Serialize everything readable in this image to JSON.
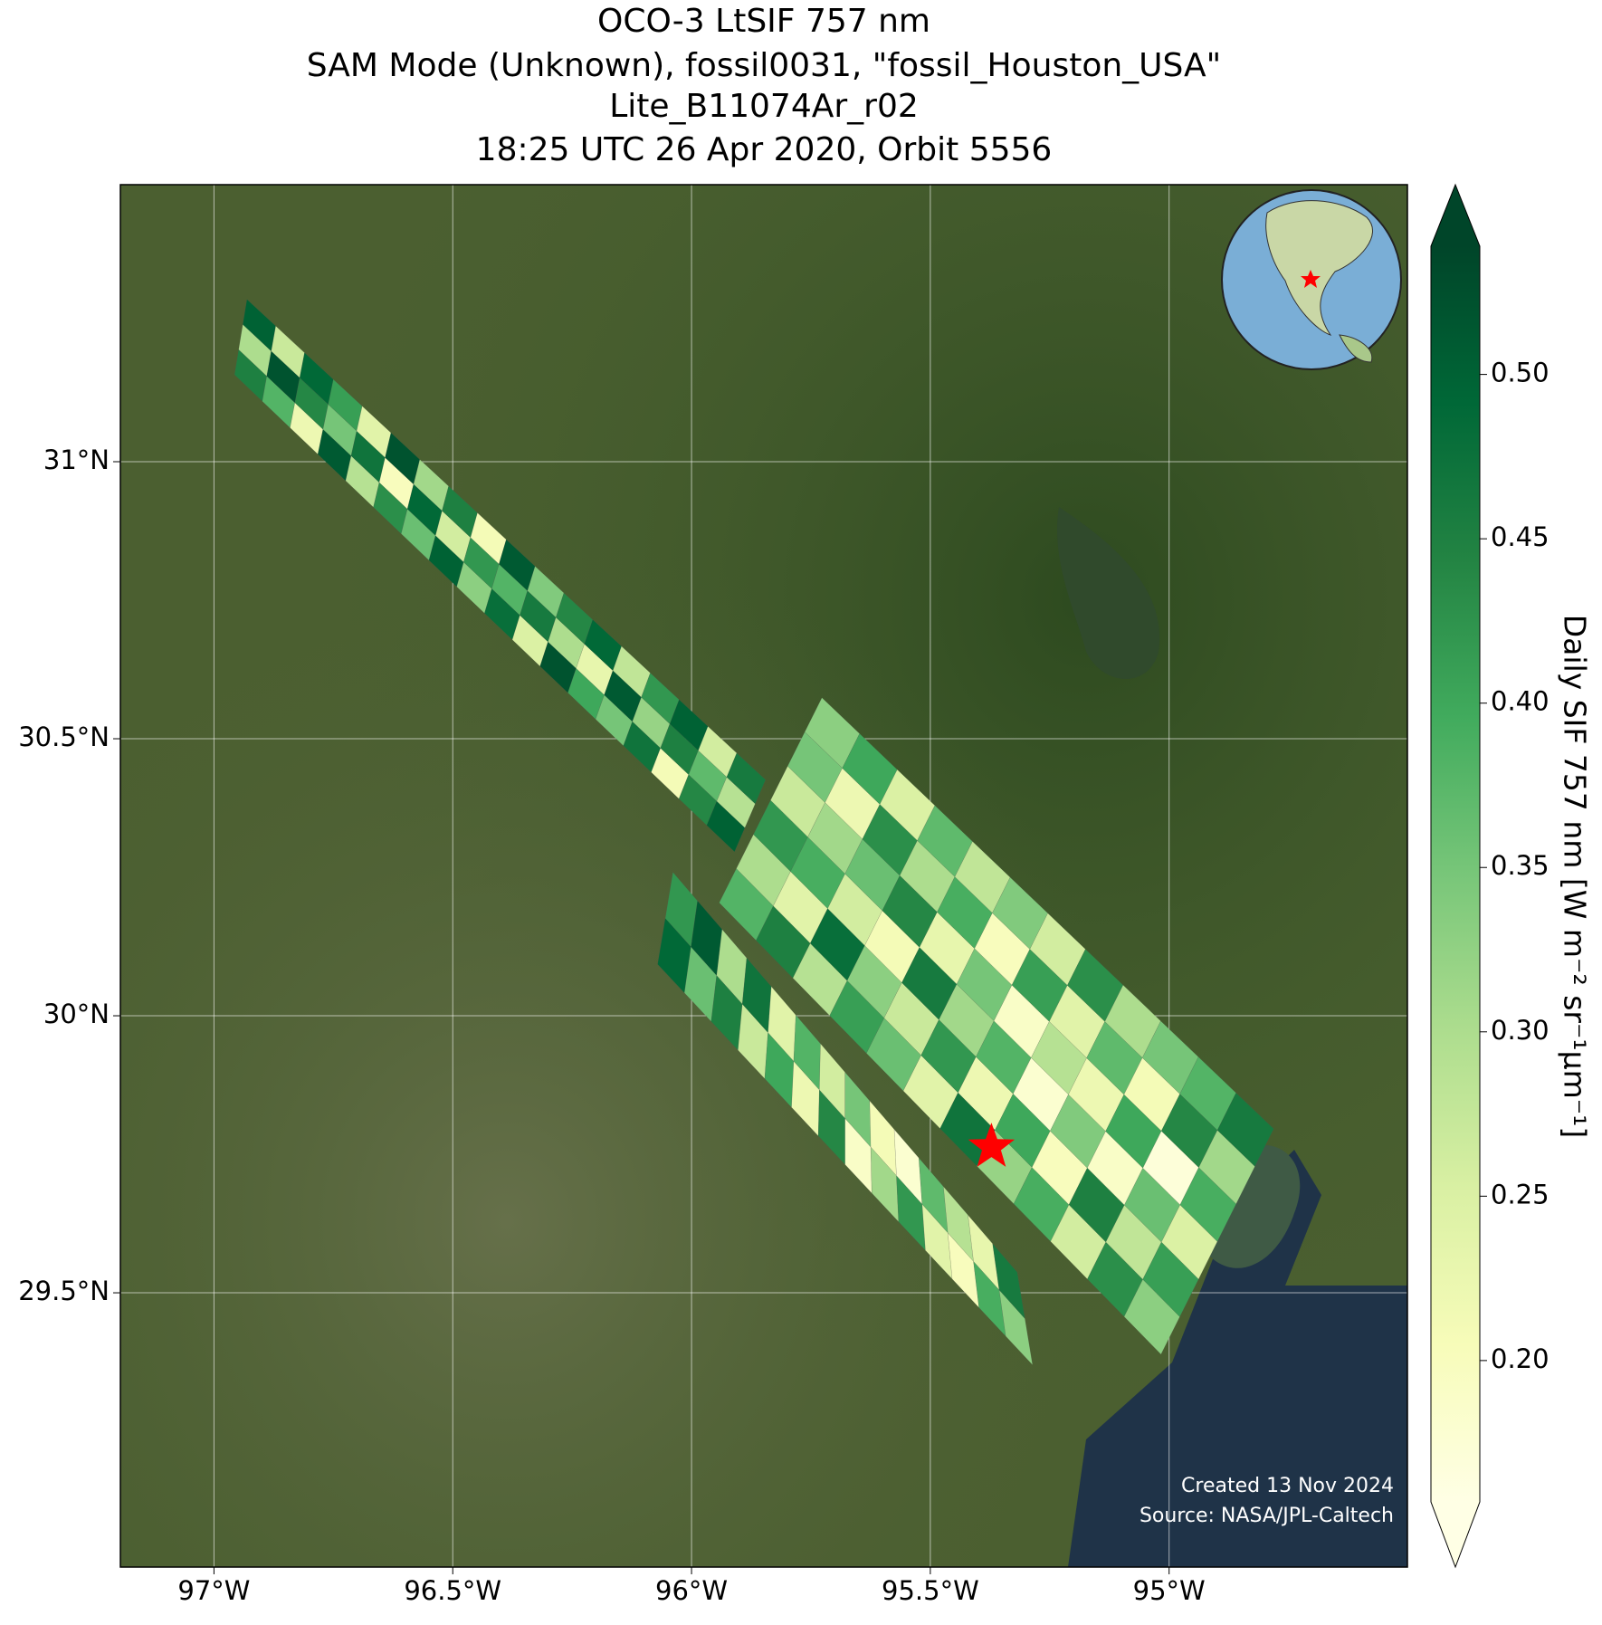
{
  "chart_data": {
    "type": "swath-map",
    "title": [
      "OCO-3 LtSIF 757 nm",
      "SAM Mode (Unknown), fossil0031, \"fossil_Houston_USA\"",
      "Lite_B11074Ar_r02",
      "18:25 UTC 26 Apr 2020, Orbit 5556"
    ],
    "xlim": [
      -97.196,
      -94.501
    ],
    "ylim": [
      29.005,
      31.5
    ],
    "xticks": [
      {
        "value": -97,
        "label": "97°W"
      },
      {
        "value": -96.5,
        "label": "96.5°W"
      },
      {
        "value": -96,
        "label": "96°W"
      },
      {
        "value": -95.5,
        "label": "95.5°W"
      },
      {
        "value": -95,
        "label": "95°W"
      }
    ],
    "yticks": [
      {
        "value": 31,
        "label": "31°N"
      },
      {
        "value": 30.5,
        "label": "30.5°N"
      },
      {
        "value": 30,
        "label": "30°N"
      },
      {
        "value": 29.5,
        "label": "29.5°N"
      }
    ],
    "grid": true,
    "colorbar_label": "Daily SIF 757 nm [W m⁻² sr⁻¹μm⁻¹]",
    "clim": [
      0.157,
      0.539
    ],
    "cticks": [
      {
        "value": 0.2,
        "label": "0.20"
      },
      {
        "value": 0.25,
        "label": "0.25"
      },
      {
        "value": 0.3,
        "label": "0.30"
      },
      {
        "value": 0.35,
        "label": "0.35"
      },
      {
        "value": 0.4,
        "label": "0.40"
      },
      {
        "value": 0.45,
        "label": "0.45"
      },
      {
        "value": 0.5,
        "label": "0.50"
      }
    ],
    "colormap": [
      "#ffffe5",
      "#f7fcb9",
      "#d9f0a3",
      "#addd8e",
      "#78c679",
      "#41ab5d",
      "#238443",
      "#006837",
      "#004529"
    ],
    "swaths": [
      {
        "lon": [
          -96.957,
          -96.931,
          -95.91,
          -95.845
        ],
        "lat": [
          31.157,
          31.293,
          30.296,
          30.426
        ],
        "values": [
          [
            0.45,
            0.3,
            0.5
          ],
          [
            0.38,
            0.52,
            0.27
          ],
          [
            0.22,
            0.44,
            0.49
          ],
          [
            0.51,
            0.35,
            0.41
          ],
          [
            0.29,
            0.47,
            0.24
          ],
          [
            0.43,
            0.2,
            0.52
          ],
          [
            0.36,
            0.49,
            0.31
          ],
          [
            0.5,
            0.26,
            0.45
          ],
          [
            0.33,
            0.42,
            0.21
          ],
          [
            0.48,
            0.38,
            0.51
          ],
          [
            0.25,
            0.46,
            0.34
          ],
          [
            0.52,
            0.3,
            0.44
          ],
          [
            0.4,
            0.23,
            0.49
          ],
          [
            0.35,
            0.51,
            0.28
          ],
          [
            0.47,
            0.32,
            0.42
          ],
          [
            0.21,
            0.45,
            0.5
          ],
          [
            0.44,
            0.37,
            0.26
          ],
          [
            0.5,
            0.29,
            0.46
          ]
        ]
      },
      {
        "lon": [
          -95.942,
          -95.727,
          -95.017,
          -94.781
        ],
        "lat": [
          30.204,
          30.574,
          29.389,
          29.796
        ],
        "values": [
          [
            0.38,
            0.3,
            0.42,
            0.27,
            0.35,
            0.33
          ],
          [
            0.45,
            0.24,
            0.39,
            0.31,
            0.22,
            0.4
          ],
          [
            0.29,
            0.48,
            0.26,
            0.36,
            0.43,
            0.25
          ],
          [
            0.41,
            0.33,
            0.21,
            0.44,
            0.3,
            0.37
          ],
          [
            0.36,
            0.27,
            0.46,
            0.23,
            0.39,
            0.28
          ],
          [
            0.24,
            0.42,
            0.31,
            0.35,
            0.2,
            0.34
          ],
          [
            0.47,
            0.22,
            0.38,
            0.19,
            0.41,
            0.26
          ],
          [
            0.32,
            0.4,
            0.18,
            0.29,
            0.24,
            0.43
          ],
          [
            0.39,
            0.2,
            0.34,
            0.22,
            0.37,
            0.3
          ],
          [
            0.26,
            0.45,
            0.19,
            0.4,
            0.21,
            0.35
          ],
          [
            0.43,
            0.28,
            0.36,
            0.17,
            0.44,
            0.38
          ],
          [
            0.33,
            0.41,
            0.25,
            0.39,
            0.31,
            0.46
          ]
        ]
      },
      {
        "lon": [
          -96.071,
          -96.039,
          -95.286,
          -95.318
        ],
        "lat": [
          30.093,
          30.259,
          29.37,
          29.537
        ],
        "values": [
          [
            0.49,
            0.42
          ],
          [
            0.36,
            0.51
          ],
          [
            0.45,
            0.3
          ],
          [
            0.27,
            0.47
          ],
          [
            0.4,
            0.24
          ],
          [
            0.22,
            0.38
          ],
          [
            0.44,
            0.26
          ],
          [
            0.19,
            0.35
          ],
          [
            0.31,
            0.21
          ],
          [
            0.42,
            0.18
          ],
          [
            0.24,
            0.37
          ],
          [
            0.2,
            0.29
          ],
          [
            0.39,
            0.23
          ],
          [
            0.33,
            0.46
          ]
        ]
      }
    ],
    "target": {
      "lon": -95.372,
      "lat": 29.763,
      "color": "#ff0000"
    },
    "annotations": [
      "Created 13 Nov 2024",
      "Source: NASA/JPL-Caltech"
    ]
  }
}
